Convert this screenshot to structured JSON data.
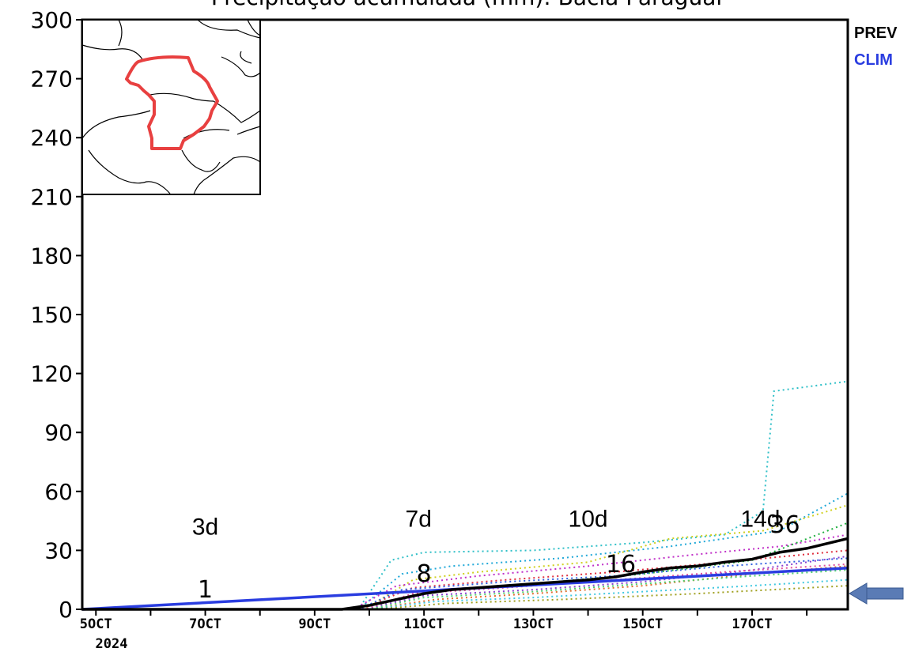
{
  "chart_data": {
    "type": "line",
    "title": "Precipitação acumulada (mm): Bacia Paraguai",
    "x_labels": [
      "5OCT",
      "7OCT",
      "9OCT",
      "11OCT",
      "13OCT",
      "15OCT",
      "17OCT"
    ],
    "x_year_label": "2024",
    "y_ticks": [
      0,
      30,
      60,
      90,
      120,
      150,
      180,
      210,
      240,
      270,
      300
    ],
    "ylim": [
      0,
      300
    ],
    "xlim": [
      4.75,
      18.75
    ],
    "legend_position": "top-right outside plot",
    "colors": {
      "prev": "#000000",
      "clim": "#2a3de0",
      "arrow": "#5a7bb5",
      "inset_outline": "#e84040"
    },
    "series": [
      {
        "name": "PREV",
        "x": [
          4.75,
          9.5,
          10,
          10.5,
          11,
          11.5,
          12,
          12.5,
          13,
          13.5,
          14,
          14.5,
          15,
          15.5,
          16,
          16.5,
          17,
          17.5,
          18,
          18.75
        ],
        "values": [
          0,
          0,
          2,
          5,
          8,
          10,
          11,
          12,
          13,
          14,
          15,
          16.5,
          19,
          21,
          22,
          24,
          25.5,
          29,
          31,
          36
        ]
      },
      {
        "name": "CLIM",
        "x": [
          4.75,
          18.75
        ],
        "values": [
          0,
          21
        ]
      }
    ],
    "members": [
      {
        "color": "#30c0c8",
        "x": [
          4.75,
          9.8,
          10.4,
          11,
          13,
          15,
          16.5,
          17.2,
          17.4,
          18.75
        ],
        "values": [
          0,
          0,
          25,
          29,
          30,
          34,
          38,
          50,
          111,
          116
        ]
      },
      {
        "color": "#20a8d8",
        "x": [
          4.75,
          9.8,
          10.6,
          11.5,
          13.5,
          15.5,
          17.5,
          18.75
        ],
        "values": [
          0,
          0,
          18,
          22,
          26,
          32,
          40,
          59
        ]
      },
      {
        "color": "#d0d020",
        "x": [
          4.75,
          9.9,
          10.8,
          12,
          14,
          15.5,
          17.2,
          18.75
        ],
        "values": [
          0,
          0,
          15,
          19,
          24,
          36,
          40,
          53
        ]
      },
      {
        "color": "#c030c8",
        "x": [
          4.75,
          9.7,
          10.5,
          12,
          14,
          16,
          17.5,
          18.75
        ],
        "values": [
          0,
          0,
          12,
          17,
          22,
          28,
          32,
          38
        ]
      },
      {
        "color": "#e03040",
        "x": [
          4.75,
          9.8,
          10.8,
          12.5,
          14.5,
          16.5,
          18.75
        ],
        "values": [
          0,
          0,
          11,
          15,
          19,
          24,
          30
        ]
      },
      {
        "color": "#20b040",
        "x": [
          4.75,
          9.9,
          11,
          13,
          15,
          17,
          18.75
        ],
        "values": [
          0,
          0,
          9,
          13,
          18,
          25,
          44
        ]
      },
      {
        "color": "#8a40d0",
        "x": [
          4.75,
          9.9,
          11,
          13,
          15,
          17,
          18.75
        ],
        "values": [
          0,
          0,
          7,
          10,
          14,
          20,
          27
        ]
      },
      {
        "color": "#e07030",
        "x": [
          4.75,
          10,
          11.2,
          13,
          15,
          17,
          18.75
        ],
        "values": [
          0,
          0,
          5,
          8,
          12,
          18,
          22
        ]
      },
      {
        "color": "#40c8e0",
        "x": [
          4.75,
          10,
          11.2,
          13,
          15,
          17,
          18.75
        ],
        "values": [
          0,
          0,
          4,
          6,
          9,
          12,
          15
        ]
      },
      {
        "color": "#a0a020",
        "x": [
          4.75,
          10.1,
          11.4,
          13.5,
          16,
          18.75
        ],
        "values": [
          0,
          0,
          3,
          5,
          8,
          12
        ]
      },
      {
        "color": "#50d070",
        "x": [
          4.75,
          10,
          11,
          13,
          15,
          17,
          18.75
        ],
        "values": [
          0,
          0,
          6,
          9,
          13,
          17,
          20
        ]
      },
      {
        "color": "#3060e0",
        "x": [
          4.75,
          9.8,
          10.6,
          12.5,
          14.5,
          16.5,
          18.75
        ],
        "values": [
          0,
          0,
          10,
          14,
          17,
          22,
          26
        ]
      },
      {
        "color": "#e050a0",
        "x": [
          4.75,
          9.9,
          10.8,
          12.5,
          14.5,
          16.5,
          18.75
        ],
        "values": [
          0,
          0,
          8,
          11,
          15,
          19,
          23
        ]
      }
    ],
    "annotations": [
      {
        "text": "3d",
        "x": 7.0,
        "y": 38
      },
      {
        "text": "7d",
        "x": 10.9,
        "y": 42
      },
      {
        "text": "10d",
        "x": 14.0,
        "y": 42
      },
      {
        "text": "14d",
        "x": 17.15,
        "y": 42
      }
    ],
    "value_labels": [
      {
        "text": "1",
        "x": 7.0,
        "y": 6
      },
      {
        "text": "8",
        "x": 11.0,
        "y": 14
      },
      {
        "text": "16",
        "x": 14.6,
        "y": 19
      },
      {
        "text": "36",
        "x": 17.6,
        "y": 39
      }
    ]
  }
}
